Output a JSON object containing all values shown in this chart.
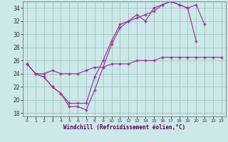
{
  "xlabel": "Windchill (Refroidissement éolien,°C)",
  "bg_color": "#cce8e8",
  "line_color": "#993399",
  "grid_color": "#99bbbb",
  "xlim": [
    -0.5,
    23.5
  ],
  "ylim": [
    17.5,
    35.0
  ],
  "yticks": [
    18,
    20,
    22,
    24,
    26,
    28,
    30,
    32,
    34
  ],
  "xticks": [
    0,
    1,
    2,
    3,
    4,
    5,
    6,
    7,
    8,
    9,
    10,
    11,
    12,
    13,
    14,
    15,
    16,
    17,
    18,
    19,
    20,
    21,
    22,
    23
  ],
  "line1_y": [
    25.5,
    24.0,
    23.5,
    22.0,
    21.0,
    19.5,
    19.5,
    19.5,
    23.5,
    26.0,
    29.0,
    31.5,
    32.0,
    32.5,
    33.0,
    33.5,
    34.5,
    35.0,
    34.5,
    34.0,
    34.5,
    31.5,
    null,
    null
  ],
  "line2_y": [
    25.5,
    24.0,
    23.5,
    22.0,
    21.0,
    19.0,
    19.0,
    18.5,
    21.5,
    25.0,
    28.5,
    31.0,
    32.0,
    33.0,
    32.0,
    34.0,
    34.5,
    35.0,
    34.5,
    34.0,
    29.0,
    null,
    null,
    null
  ],
  "line3_y": [
    25.5,
    24.0,
    24.0,
    24.5,
    24.0,
    24.0,
    24.0,
    24.5,
    25.0,
    25.0,
    25.5,
    25.5,
    25.5,
    26.0,
    26.0,
    26.0,
    26.5,
    26.5,
    26.5,
    26.5,
    26.5,
    26.5,
    26.5,
    26.5
  ]
}
